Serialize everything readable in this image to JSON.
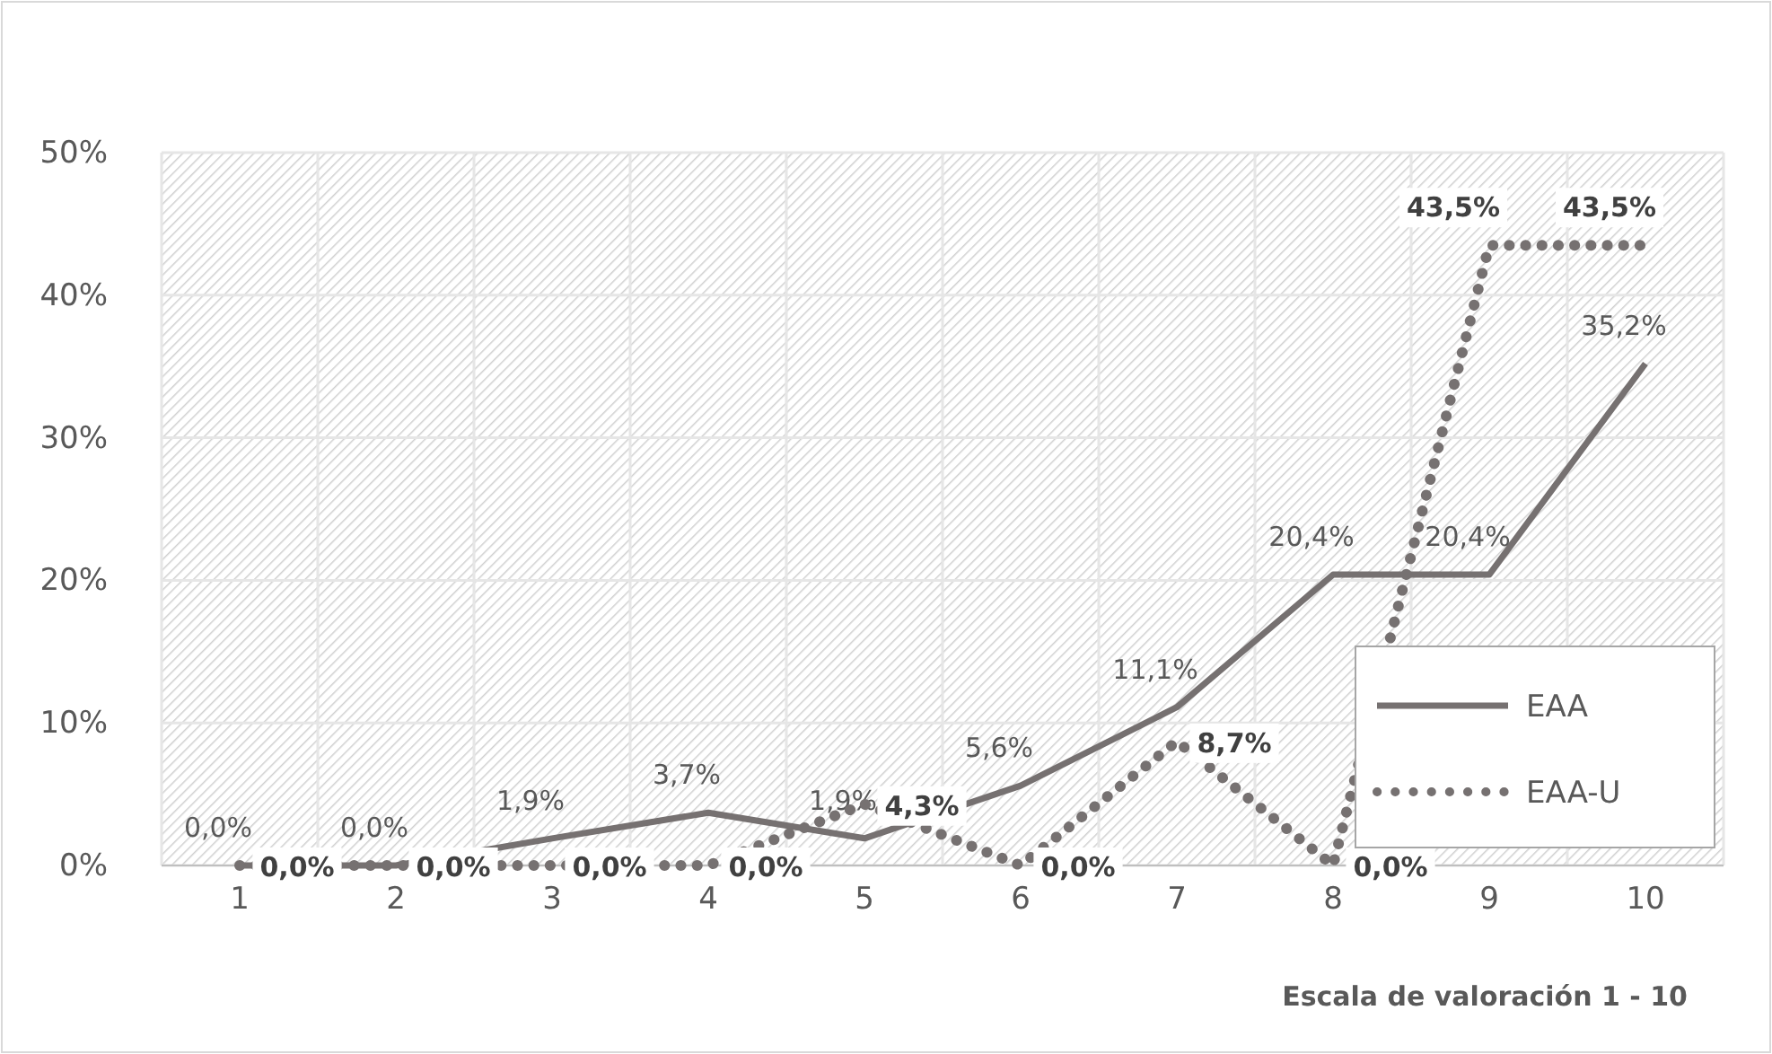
{
  "chart_data": {
    "type": "line",
    "xlabel": "Escala de valoración 1 - 10",
    "categories": [
      "1",
      "2",
      "3",
      "4",
      "5",
      "6",
      "7",
      "8",
      "9",
      "10"
    ],
    "ylim": [
      0,
      50
    ],
    "yticks": [
      {
        "value": 0,
        "label": "0%"
      },
      {
        "value": 10,
        "label": "10%"
      },
      {
        "value": 20,
        "label": "20%"
      },
      {
        "value": 30,
        "label": "30%"
      },
      {
        "value": 40,
        "label": "40%"
      },
      {
        "value": 50,
        "label": "50%"
      }
    ],
    "grid": true,
    "legend": "bottom right",
    "marker": "none",
    "series": [
      {
        "name": "EAA",
        "color": "#767171",
        "line_style": "solid",
        "values": [
          0,
          0,
          1.9,
          3.7,
          1.9,
          5.6,
          11.1,
          20.4,
          20.4,
          35.2
        ],
        "value_labels": [
          "0,0%",
          "0,0%",
          "1,9%",
          "3,7%",
          "1,9%",
          "5,6%",
          "11,1%",
          "20,4%",
          "20,4%",
          "35,2%"
        ]
      },
      {
        "name": "EAA-U",
        "color": "#767171",
        "line_style": "dotted",
        "values": [
          0,
          0,
          0,
          0,
          4.3,
          0,
          8.7,
          0,
          43.5,
          43.5
        ],
        "value_labels": [
          "0,0%",
          "0,0%",
          "0,0%",
          "0,0%",
          "4,3%",
          "0,0%",
          "8,7%",
          "0,0%",
          "43,5%",
          "43,5%"
        ]
      }
    ]
  }
}
